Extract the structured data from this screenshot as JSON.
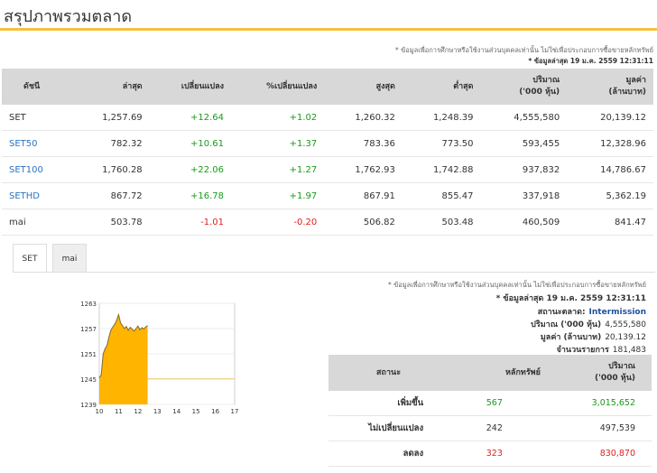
{
  "page": {
    "title": "สรุปภาพรวมตลาด"
  },
  "top_note": {
    "disclaimer": "* ข้อมูลเพื่อการศึกษาหรือใช้งานส่วนบุคคลเท่านั้น ไม่ใช่เพื่อประกอบการซื้อขายหลักทรัพย์",
    "updated": "* ข้อมูลล่าสุด 19 ม.ค. 2559 12:31:11"
  },
  "market_table": {
    "headers": [
      "ดัชนี",
      "ล่าสุด",
      "เปลี่ยนแปลง",
      "%เปลี่ยนแปลง",
      "สูงสุด",
      "ต่ำสุด",
      "ปริมาณ\n('000 หุ้น)",
      "มูลค่า\n(ล้านบาท)"
    ],
    "rows": [
      {
        "name": "SET",
        "last": "1,257.69",
        "change": "+12.64",
        "pct": "+1.02",
        "high": "1,260.32",
        "low": "1,248.39",
        "volume": "4,555,580",
        "value": "20,139.12",
        "dir": "pos",
        "link": false
      },
      {
        "name": "SET50",
        "last": "782.32",
        "change": "+10.61",
        "pct": "+1.37",
        "high": "783.36",
        "low": "773.50",
        "volume": "593,455",
        "value": "12,328.96",
        "dir": "pos",
        "link": true
      },
      {
        "name": "SET100",
        "last": "1,760.28",
        "change": "+22.06",
        "pct": "+1.27",
        "high": "1,762.93",
        "low": "1,742.88",
        "volume": "937,832",
        "value": "14,786.67",
        "dir": "pos",
        "link": true
      },
      {
        "name": "SETHD",
        "last": "867.72",
        "change": "+16.78",
        "pct": "+1.97",
        "high": "867.91",
        "low": "855.47",
        "volume": "337,918",
        "value": "5,362.19",
        "dir": "pos",
        "link": true
      },
      {
        "name": "mai",
        "last": "503.78",
        "change": "-1.01",
        "pct": "-0.20",
        "high": "506.82",
        "low": "503.48",
        "volume": "460,509",
        "value": "841.47",
        "dir": "neg",
        "link": false
      }
    ]
  },
  "tabs": [
    {
      "label": "SET",
      "active": true
    },
    {
      "label": "mai",
      "active": false
    }
  ],
  "chart_data": {
    "type": "area",
    "x": [
      10.0,
      10.1,
      10.2,
      10.3,
      10.4,
      10.5,
      10.6,
      10.7,
      10.8,
      10.9,
      11.0,
      11.1,
      11.2,
      11.3,
      11.4,
      11.5,
      11.6,
      11.7,
      11.8,
      11.9,
      12.0,
      12.1,
      12.2,
      12.3,
      12.4,
      12.5
    ],
    "values": [
      1245.3,
      1246.0,
      1251.0,
      1252.2,
      1253.0,
      1255.0,
      1256.6,
      1257.4,
      1258.0,
      1259.0,
      1260.3,
      1258.4,
      1257.7,
      1257.0,
      1257.5,
      1256.6,
      1257.3,
      1256.9,
      1256.4,
      1257.0,
      1257.6,
      1256.7,
      1257.2,
      1256.9,
      1257.4,
      1257.7
    ],
    "reference": 1245.05,
    "xticks": [
      "10",
      "11",
      "12",
      "13",
      "14",
      "15",
      "16",
      "17"
    ],
    "yticks": [
      "1263",
      "1257",
      "1251",
      "1245",
      "1239"
    ],
    "xlim": [
      10,
      17
    ],
    "ylim": [
      1239,
      1263
    ],
    "fill_color": "#ffb400",
    "line_color": "#7a6a3a",
    "ref_color": "#e8c86a"
  },
  "summary_note": {
    "disclaimer": "* ข้อมูลเพื่อการศึกษาหรือใช้งานส่วนบุคคลเท่านั้น ไม่ใช่เพื่อประกอบการซื้อขายหลักทรัพย์",
    "updated": "* ข้อมูลล่าสุด 19 ม.ค. 2559 12:31:11",
    "status_label": "สถานะตลาด:",
    "status_value": "Intermission",
    "volume_label": "ปริมาณ ('000 หุ้น)",
    "volume_value": "4,555,580",
    "value_label": "มูลค่า (ล้านบาท)",
    "value_value": "20,139.12",
    "trades_label": "จำนวนรายการ",
    "trades_value": "181,483"
  },
  "summary_table": {
    "headers": [
      "สถานะ",
      "หลักทรัพย์",
      "ปริมาณ\n('000 หุ้น)"
    ],
    "rows": [
      {
        "status": "เพิ่มขึ้น",
        "count": "567",
        "volume": "3,015,652",
        "cls": "up"
      },
      {
        "status": "ไม่เปลี่ยนแปลง",
        "count": "242",
        "volume": "497,539",
        "cls": "flat"
      },
      {
        "status": "ลดลง",
        "count": "323",
        "volume": "830,870",
        "cls": "down"
      }
    ]
  }
}
